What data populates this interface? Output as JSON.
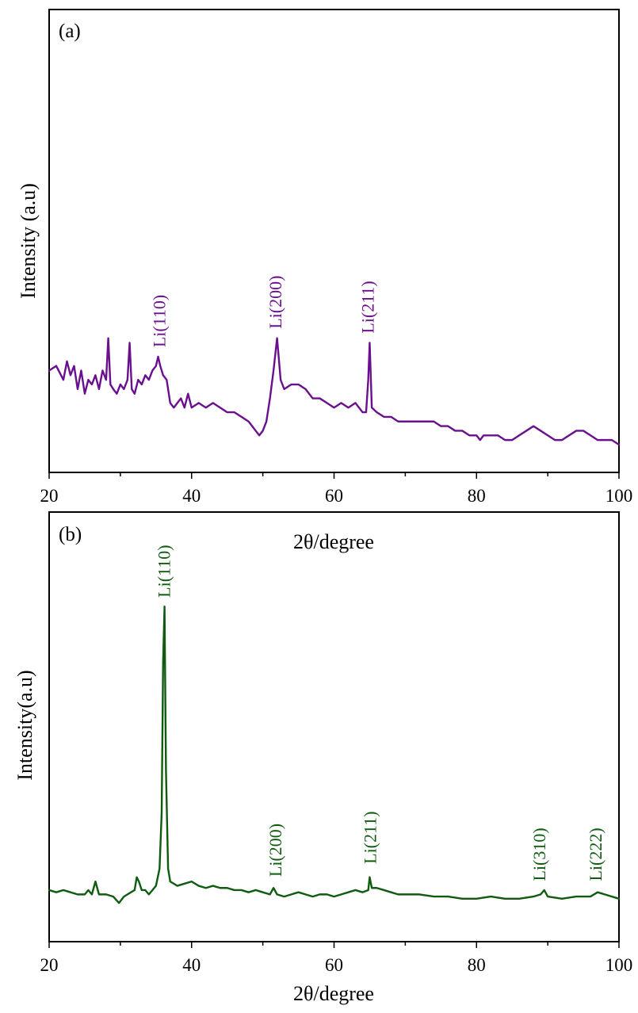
{
  "chart_data": [
    {
      "type": "line",
      "panel_label": "(a)",
      "xlabel": "2θ/degree",
      "ylabel": "Intensity (a.u)",
      "xlim": [
        20,
        100
      ],
      "ylim": [
        0,
        100
      ],
      "xticks": [
        20,
        40,
        60,
        80,
        100
      ],
      "yticks_labeled": false,
      "grid": false,
      "line_color": "#6a0f8e",
      "series": [
        {
          "x": [
            20,
            21,
            22,
            22.5,
            23,
            23.5,
            24,
            24.5,
            25,
            25.5,
            26,
            26.5,
            27,
            27.5,
            28,
            28.3,
            28.6,
            29,
            29.5,
            30,
            30.5,
            31,
            31.3,
            31.6,
            32,
            32.5,
            33,
            33.5,
            34,
            34.5,
            35,
            35.3,
            35.6,
            36,
            36.5,
            37,
            37.5,
            38,
            38.5,
            39,
            39.5,
            40,
            41,
            42,
            43,
            44,
            45,
            46,
            47,
            48,
            49,
            49.5,
            50,
            50.5,
            51,
            51.5,
            52,
            52.5,
            53,
            54,
            55,
            56,
            57,
            58,
            59,
            60,
            61,
            62,
            63,
            64,
            64.5,
            64.8,
            65,
            65.3,
            66,
            67,
            68,
            69,
            70,
            71,
            72,
            73,
            74,
            75,
            76,
            77,
            78,
            79,
            80,
            80.5,
            81,
            82,
            83,
            84,
            85,
            86,
            87,
            88,
            89,
            90,
            91,
            92,
            93,
            94,
            95,
            96,
            97,
            98,
            99,
            100
          ],
          "y": [
            22,
            23,
            20,
            24,
            21,
            23,
            18,
            22,
            17,
            20,
            19,
            21,
            18,
            22,
            20,
            29,
            19,
            18,
            17,
            19,
            18,
            20,
            28,
            18,
            17,
            20,
            19,
            21,
            20,
            22,
            23,
            25,
            23,
            21,
            20,
            15,
            14,
            15,
            16,
            14,
            17,
            14,
            15,
            14,
            15,
            14,
            13,
            13,
            12,
            11,
            9,
            8,
            9,
            11,
            16,
            22,
            29,
            20,
            18,
            19,
            19,
            18,
            16,
            16,
            15,
            14,
            15,
            14,
            15,
            13,
            13,
            20,
            28,
            14,
            13,
            12,
            12,
            11,
            11,
            11,
            11,
            11,
            11,
            10,
            10,
            9,
            9,
            8,
            8,
            7,
            8,
            8,
            8,
            7,
            7,
            8,
            9,
            10,
            9,
            8,
            7,
            7,
            8,
            9,
            9,
            8,
            7,
            7,
            7,
            6
          ],
          "peak_labels": [
            {
              "x": 35.5,
              "y": 26,
              "text": "Li(110)"
            },
            {
              "x": 51.8,
              "y": 30,
              "text": "Li(200)"
            },
            {
              "x": 64.8,
              "y": 29,
              "text": "Li(211)"
            }
          ]
        }
      ]
    },
    {
      "type": "line",
      "panel_label": "(b)",
      "xlabel": "2θ/degree",
      "ylabel": "Intensity(a.u)",
      "xlim": [
        20,
        100
      ],
      "ylim": [
        0,
        100
      ],
      "xticks": [
        20,
        40,
        60,
        80,
        100
      ],
      "yticks_labeled": false,
      "grid": false,
      "line_color": "#0f5b0f",
      "series": [
        {
          "x": [
            20,
            21,
            22,
            23,
            24,
            25,
            25.5,
            26,
            26.5,
            27,
            28,
            29,
            29.8,
            30.5,
            31,
            32,
            32.3,
            32.6,
            33,
            33.5,
            34,
            34.5,
            35,
            35.5,
            35.8,
            36,
            36.2,
            36.4,
            36.7,
            37,
            38,
            39,
            40,
            41,
            42,
            43,
            44,
            45,
            46,
            47,
            48,
            49,
            50,
            51,
            51.5,
            52,
            53,
            54,
            55,
            56,
            57,
            58,
            59,
            60,
            61,
            62,
            63,
            64,
            64.8,
            65,
            65.3,
            66,
            67,
            68,
            69,
            70,
            72,
            74,
            76,
            78,
            80,
            82,
            84,
            86,
            88,
            89,
            89.5,
            90,
            92,
            94,
            96,
            97,
            98,
            100
          ],
          "y": [
            12,
            11.5,
            12,
            11.5,
            11,
            11,
            12,
            11,
            14,
            11,
            11,
            10.5,
            9,
            10.5,
            11,
            12,
            15,
            14,
            12,
            12,
            11,
            12,
            13,
            17,
            30,
            65,
            78,
            40,
            17,
            14,
            13,
            13.5,
            14,
            13,
            12.5,
            13,
            12.5,
            12.5,
            12,
            12,
            11.5,
            12,
            11.5,
            11,
            12.5,
            11,
            10.5,
            11,
            11.5,
            11,
            10.5,
            11,
            11,
            10.5,
            11,
            11.5,
            12,
            11.5,
            12,
            15,
            12.5,
            12.5,
            12,
            11.5,
            11,
            11,
            11,
            10.5,
            10.5,
            10,
            10,
            10.5,
            10,
            10,
            10.5,
            11,
            12,
            10.5,
            10,
            10.5,
            10.5,
            11.5,
            11,
            10
          ]
        }
      ],
      "peak_labels": [
        {
          "x": 36.2,
          "y": 79,
          "text": "Li(110)"
        },
        {
          "x": 51.8,
          "y": 14,
          "text": "Li(200)"
        },
        {
          "x": 65.1,
          "y": 17,
          "text": "Li(211)"
        },
        {
          "x": 88.9,
          "y": 13,
          "text": "Li(310)"
        },
        {
          "x": 96.8,
          "y": 13,
          "text": "Li(222)"
        }
      ]
    }
  ]
}
